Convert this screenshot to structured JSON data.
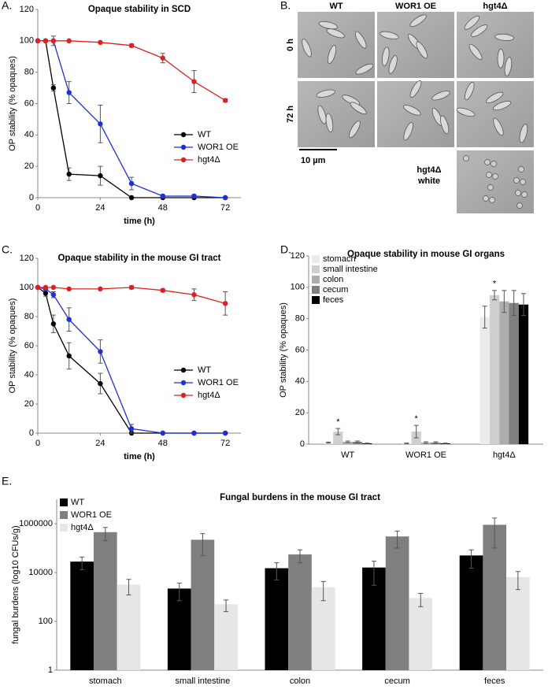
{
  "chart_data": [
    {
      "label": "A.",
      "type": "line",
      "title": "Opaque stability in SCD",
      "xlabel": "time (h)",
      "ylabel": "OP stability (% opaques)",
      "x": [
        0,
        3,
        6,
        12,
        24,
        36,
        48,
        60,
        72
      ],
      "xlim": [
        0,
        78
      ],
      "xticks": [
        0,
        24,
        48,
        72
      ],
      "ylim": [
        0,
        120
      ],
      "yticks": [
        0,
        20,
        40,
        60,
        80,
        100,
        120
      ],
      "legend": "lower right",
      "series": [
        {
          "name": "WT",
          "color": "#000000",
          "values": [
            100,
            100,
            70,
            15,
            14,
            0,
            0,
            0,
            0
          ],
          "errors": [
            0,
            0,
            2,
            4,
            6,
            0,
            0,
            0,
            0
          ]
        },
        {
          "name": "WOR1 OE",
          "color": "#1f2fd6",
          "values": [
            100,
            100,
            100,
            67,
            47,
            9,
            1,
            1,
            0
          ],
          "errors": [
            0,
            0,
            3,
            7,
            12,
            4,
            1,
            1,
            0
          ]
        },
        {
          "name": "hgt4Δ",
          "color": "#e02020",
          "values": [
            100,
            100,
            100,
            100,
            99,
            97,
            89,
            74,
            62
          ],
          "errors": [
            0,
            0,
            0,
            0,
            0,
            1,
            3,
            7,
            1
          ]
        }
      ]
    },
    {
      "label": "C.",
      "type": "line",
      "title": "Opaque stability in the mouse GI tract",
      "xlabel": "time (h)",
      "ylabel": "OP stability (% opaques)",
      "x": [
        0,
        3,
        6,
        12,
        24,
        36,
        48,
        60,
        72
      ],
      "xlim": [
        0,
        78
      ],
      "xticks": [
        0,
        24,
        48,
        72
      ],
      "ylim": [
        0,
        120
      ],
      "yticks": [
        0,
        20,
        40,
        60,
        80,
        100,
        120
      ],
      "legend": "lower right",
      "series": [
        {
          "name": "WT",
          "color": "#000000",
          "values": [
            100,
            96,
            75,
            53,
            34,
            0,
            0,
            0,
            0
          ],
          "errors": [
            0,
            2,
            6,
            9,
            7,
            0,
            0,
            0,
            0
          ]
        },
        {
          "name": "WOR1 OE",
          "color": "#1f2fd6",
          "values": [
            100,
            99,
            95,
            78,
            56,
            3,
            0,
            0,
            0
          ],
          "errors": [
            0,
            0,
            2,
            8,
            8,
            3,
            0,
            0,
            0
          ]
        },
        {
          "name": "hgt4Δ",
          "color": "#e02020",
          "values": [
            100,
            100,
            100,
            99,
            99,
            100,
            98,
            95,
            89
          ],
          "errors": [
            0,
            0,
            0,
            0,
            0,
            1,
            1,
            4,
            8
          ]
        }
      ]
    },
    {
      "label": "D.",
      "type": "bar",
      "title": "Opaque stability in mouse GI organs",
      "ylabel": "OP stability (% opaques)",
      "categories": [
        "WT",
        "WOR1 OE",
        "hgt4Δ"
      ],
      "ylim": [
        0,
        120
      ],
      "yticks": [
        0,
        20,
        40,
        60,
        80,
        100,
        120
      ],
      "legend": "upper left",
      "series": [
        {
          "name": "stomach",
          "color": "#ebebeb",
          "values": [
            1,
            0.5,
            81
          ],
          "errors": [
            0.3,
            0.2,
            7
          ]
        },
        {
          "name": "small intestine",
          "color": "#cfcfcf",
          "values": [
            8,
            8,
            95
          ],
          "errors": [
            2,
            4,
            3
          ]
        },
        {
          "name": "colon",
          "color": "#adadad",
          "values": [
            1.5,
            1,
            91
          ],
          "errors": [
            0.5,
            0.5,
            7
          ]
        },
        {
          "name": "cecum",
          "color": "#7f7f7f",
          "values": [
            1.5,
            1,
            90
          ],
          "errors": [
            0.5,
            0.5,
            8
          ]
        },
        {
          "name": "feces",
          "color": "#000000",
          "values": [
            0.5,
            0.5,
            89
          ],
          "errors": [
            0.2,
            0.2,
            7
          ]
        }
      ],
      "annotations": [
        {
          "text": "*",
          "category": "WT",
          "series": "small intestine"
        },
        {
          "text": "*",
          "category": "WOR1 OE",
          "series": "small intestine"
        },
        {
          "text": "*",
          "category": "hgt4Δ",
          "series": "small intestine"
        }
      ]
    },
    {
      "label": "E.",
      "type": "bar",
      "title": "Fungal burdens in the mouse GI tract",
      "ylabel": "fungal burdens (log10 CFUs/g)",
      "categories": [
        "stomach",
        "small intestine",
        "colon",
        "cecum",
        "feces"
      ],
      "log_scale": true,
      "ylim": [
        1,
        10000000
      ],
      "yticks": [
        1,
        100,
        10000,
        1000000
      ],
      "legend": "upper left",
      "series": [
        {
          "name": "WT",
          "color": "#000000",
          "values": [
            28000,
            2200,
            15000,
            16000,
            50000
          ],
          "errors": [
            15000,
            1500,
            10000,
            13000,
            35000
          ]
        },
        {
          "name": "WOR1 OE",
          "color": "#7f7f7f",
          "values": [
            450000,
            220000,
            55000,
            300000,
            900000
          ],
          "errors": [
            250000,
            170000,
            30000,
            200000,
            800000
          ]
        },
        {
          "name": "hgt4Δ",
          "color": "#e6e6e6",
          "values": [
            3200,
            500,
            2500,
            900,
            6500
          ],
          "errors": [
            2000,
            250,
            1800,
            500,
            4500
          ]
        }
      ]
    }
  ],
  "micrograph": {
    "label": "B.",
    "columns": [
      "WT",
      "WOR1 OE",
      "hgt4Δ"
    ],
    "rows": [
      "0 h",
      "72 h"
    ],
    "scale_bar": "10 µm",
    "extra_cell": [
      "hgt4Δ",
      "white"
    ]
  }
}
